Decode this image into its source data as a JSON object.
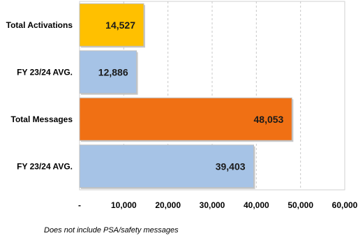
{
  "chart_data": {
    "type": "bar",
    "orientation": "horizontal",
    "categories": [
      "Total Activations",
      "FY 23/24 AVG.",
      "Total Messages",
      "FY 23/24 AVG."
    ],
    "values": [
      14527,
      12886,
      48053,
      39403
    ],
    "value_labels": [
      "14,527",
      "12,886",
      "48,053",
      "39,403"
    ],
    "bar_colors": [
      "#FFC000",
      "#A6C3E6",
      "#F07014",
      "#A6C3E6"
    ],
    "xlim": [
      0,
      60000
    ],
    "x_ticks": [
      0,
      10000,
      20000,
      30000,
      40000,
      50000,
      60000
    ],
    "x_tick_labels": [
      "-",
      "10,000",
      "20,000",
      "30,000",
      "40,000",
      "50,000",
      "60,000"
    ],
    "grid": "vertical dashed",
    "title": "",
    "xlabel": "",
    "ylabel": ""
  },
  "footnote": "Does not include PSA/safety messages"
}
